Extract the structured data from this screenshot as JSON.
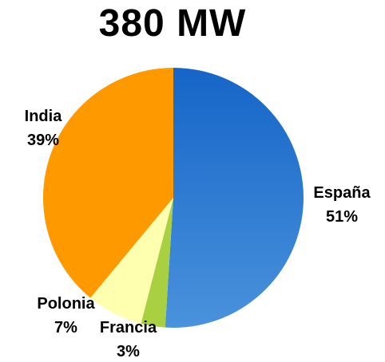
{
  "chart_data": {
    "type": "pie",
    "title": "380 MW",
    "slices": [
      {
        "label": "España",
        "percent_label": "51%",
        "value": 51,
        "color_top": "#1565c8",
        "color_bottom": "#4a92dc"
      },
      {
        "label": "Francia",
        "percent_label": "3%",
        "value": 3,
        "color_top": "#a8d040",
        "color_bottom": "#a8d040"
      },
      {
        "label": "Polonia",
        "percent_label": "7%",
        "value": 7,
        "color_top": "#ffffb0",
        "color_bottom": "#ffffb0"
      },
      {
        "label": "India",
        "percent_label": "39%",
        "value": 39,
        "color_top": "#ff9900",
        "color_bottom": "#ff9900"
      }
    ],
    "legend": "none"
  }
}
